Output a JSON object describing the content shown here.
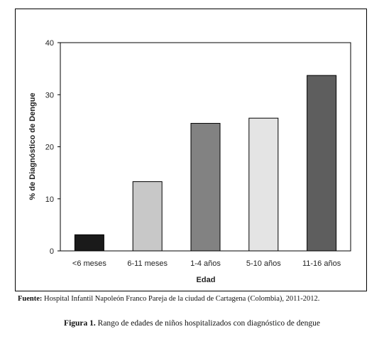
{
  "chart_data": {
    "type": "bar",
    "categories": [
      "<6 meses",
      "6-11 meses",
      "1-4 años",
      "5-10 años",
      "11-16 años"
    ],
    "values": [
      3.1,
      13.3,
      24.5,
      25.5,
      33.7
    ],
    "bar_colors": [
      "#1a1a1a",
      "#c8c8c8",
      "#828282",
      "#e4e4e4",
      "#5e5e5e"
    ],
    "xlabel": "Edad",
    "ylabel": "% de Diagnóstico de Dengue",
    "ylim": [
      0,
      40
    ],
    "yticks": [
      0,
      10,
      20,
      30,
      40
    ],
    "grid": false,
    "legend": "none"
  },
  "source": {
    "label": "Fuente:",
    "text": " Hospital Infantil Napoleón Franco Pareja de la ciudad de Cartagena (Colombia), 2011-2012."
  },
  "caption": {
    "label": "Figura 1.",
    "text": " Rango de edades de niños hospitalizados con diagnóstico de dengue"
  }
}
